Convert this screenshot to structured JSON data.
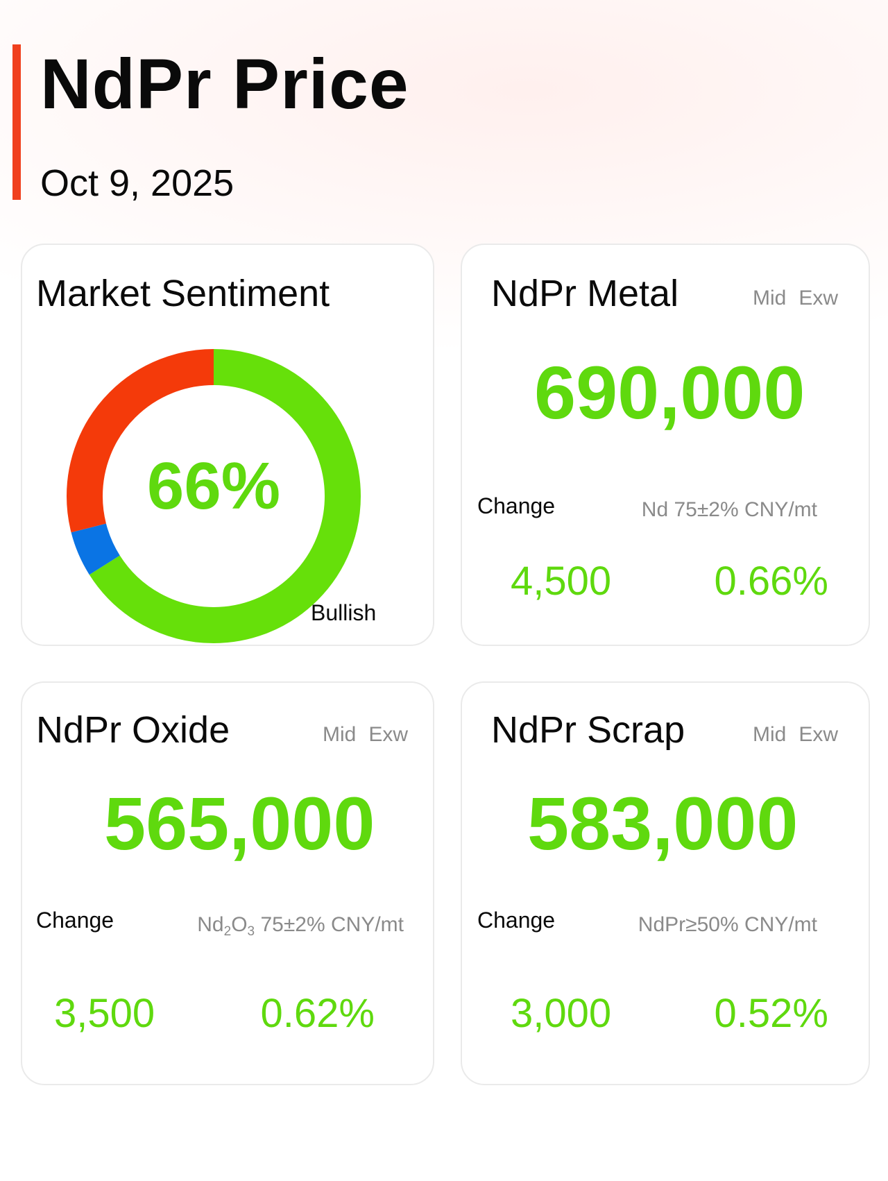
{
  "header": {
    "title": "NdPr Price",
    "date": "Oct 9, 2025"
  },
  "sentiment": {
    "title": "Market Sentiment",
    "percent_label": "66%",
    "bullish_label": "Bullish",
    "shares": {
      "bullish": 0.66,
      "neutral": 0.05,
      "bearish": 0.29
    },
    "colors": {
      "bullish": "#66e00a",
      "neutral": "#0a74e4",
      "bearish": "#f43a0a"
    }
  },
  "metal": {
    "title": "NdPr Metal",
    "mid": "Mid",
    "exw": "Exw",
    "price": "690,000",
    "change_label": "Change",
    "spec": "Nd 75±2% CNY/mt",
    "change_abs": "4,500",
    "change_pct": "0.66%"
  },
  "oxide": {
    "title": "NdPr Oxide",
    "mid": "Mid",
    "exw": "Exw",
    "price": "565,000",
    "change_label": "Change",
    "spec_nd": "Nd",
    "spec_sub1": "2",
    "spec_o": "O",
    "spec_sub2": "3",
    "spec_rest": " 75±2% CNY/mt",
    "change_abs": "3,500",
    "change_pct": "0.62%"
  },
  "scrap": {
    "title": "NdPr Scrap",
    "mid": "Mid",
    "exw": "Exw",
    "price": "583,000",
    "change_label": "Change",
    "spec": "NdPr≥50% CNY/mt",
    "change_abs": "3,000",
    "change_pct": "0.52%"
  }
}
